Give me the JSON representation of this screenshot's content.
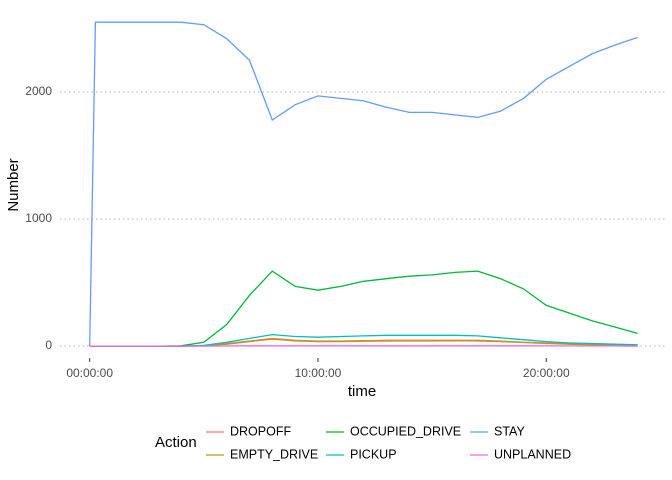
{
  "chart_data": {
    "type": "line",
    "x_label": "time",
    "y_label": "Number",
    "x": [
      0,
      0.25,
      1,
      2,
      3,
      4,
      5,
      6,
      7,
      8,
      9,
      10,
      11,
      12,
      13,
      14,
      15,
      16,
      17,
      18,
      19,
      20,
      21,
      22,
      23,
      24
    ],
    "series": [
      {
        "name": "DROPOFF",
        "color": "#F8766D",
        "values": [
          0,
          0,
          0,
          0,
          0,
          0,
          3,
          20,
          40,
          60,
          45,
          40,
          40,
          42,
          45,
          45,
          45,
          45,
          45,
          40,
          30,
          25,
          18,
          12,
          10,
          8
        ]
      },
      {
        "name": "EMPTY_DRIVE",
        "color": "#B79F00",
        "values": [
          0,
          0,
          0,
          0,
          0,
          0,
          2,
          15,
          35,
          55,
          40,
          35,
          35,
          38,
          40,
          40,
          40,
          42,
          40,
          35,
          28,
          20,
          15,
          10,
          8,
          5
        ]
      },
      {
        "name": "OCCUPIED_DRIVE",
        "color": "#00BA38",
        "values": [
          0,
          0,
          0,
          0,
          0,
          2,
          30,
          170,
          400,
          590,
          470,
          440,
          470,
          510,
          530,
          550,
          560,
          580,
          590,
          530,
          450,
          320,
          260,
          200,
          150,
          100
        ]
      },
      {
        "name": "PICKUP",
        "color": "#00BFC4",
        "values": [
          0,
          0,
          0,
          0,
          0,
          0,
          5,
          30,
          60,
          90,
          75,
          70,
          75,
          80,
          85,
          85,
          85,
          85,
          80,
          65,
          50,
          35,
          25,
          20,
          15,
          10
        ]
      },
      {
        "name": "STAY",
        "color": "#619CFF",
        "values": [
          0,
          2550,
          2550,
          2550,
          2550,
          2550,
          2530,
          2420,
          2250,
          1780,
          1900,
          1970,
          1950,
          1930,
          1880,
          1840,
          1840,
          1820,
          1800,
          1850,
          1950,
          2100,
          2200,
          2300,
          2370,
          2430
        ]
      },
      {
        "name": "UNPLANNED",
        "color": "#F564E3",
        "values": [
          0,
          0,
          0,
          0,
          0,
          0,
          0,
          1,
          2,
          2,
          2,
          2,
          2,
          2,
          2,
          2,
          2,
          2,
          2,
          2,
          2,
          1,
          1,
          1,
          1,
          0
        ]
      }
    ],
    "xlim": [
      -1.3,
      25.2
    ],
    "xticks": [
      {
        "value": 0,
        "label": "00:00:00"
      },
      {
        "value": 10,
        "label": "10:00:00"
      },
      {
        "value": 20,
        "label": "20:00:00"
      }
    ],
    "ylim": [
      -94,
      2646
    ],
    "yticks": [
      0,
      1000,
      2000
    ],
    "grid": true,
    "legend_title": "Action",
    "legend_position": "bottom"
  }
}
